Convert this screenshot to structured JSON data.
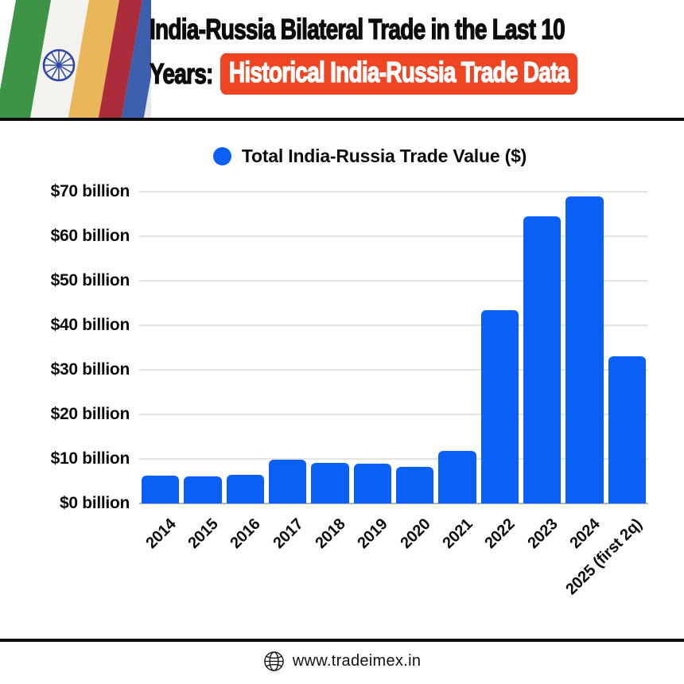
{
  "header": {
    "title_line1": "India-Russia Bilateral Trade in the Last 10",
    "title_line2_prefix": "Years:",
    "title_line2_highlight": "Historical India-Russia Trade Data",
    "highlight_bg": "#EE4523"
  },
  "legend": {
    "label": "Total India-Russia Trade Value ($)",
    "marker_color": "#0A5FF5"
  },
  "chart_data": {
    "type": "bar",
    "title": "Total India-Russia Trade Value ($)",
    "categories": [
      "2014",
      "2015",
      "2016",
      "2017",
      "2018",
      "2019",
      "2020",
      "2021",
      "2022",
      "2023",
      "2024",
      "2025 (first 2q)"
    ],
    "values": [
      6.3,
      6.1,
      6.5,
      9.8,
      9.1,
      9.0,
      8.3,
      11.8,
      43.4,
      64.5,
      68.9,
      33.0
    ],
    "unit": "USD billion",
    "yticks": [
      "$70 billion",
      "$60 billion",
      "$50 billion",
      "$40 billion",
      "$30 billion",
      "$20 billion",
      "$10 billion",
      "$0 billion"
    ],
    "ylim": [
      0,
      70
    ],
    "grid": true,
    "bar_color": "#0A5FF5",
    "legend_position": "top"
  },
  "footer": {
    "website": "www.tradeimex.in"
  }
}
